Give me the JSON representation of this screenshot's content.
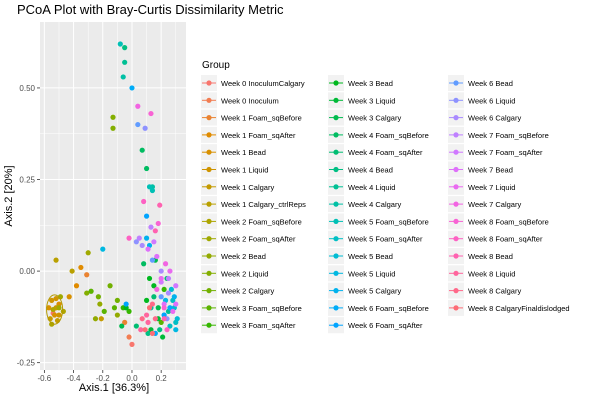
{
  "chart_data": {
    "type": "scatter",
    "title": "PCoA Plot with Bray-Curtis Dissimilarity Metric",
    "xlabel": "Axis.1   [36.3%]",
    "ylabel": "Axis.2   [20%]",
    "xlim": [
      -0.63,
      0.37
    ],
    "ylim": [
      -0.27,
      0.68
    ],
    "x_ticks": [
      -0.6,
      -0.4,
      -0.2,
      0.0,
      0.2
    ],
    "x_tick_labels": [
      "-0.6",
      "-0.4",
      "-0.2",
      "0.0",
      "0.2"
    ],
    "y_ticks": [
      -0.25,
      0.0,
      0.25,
      0.5
    ],
    "y_tick_labels": [
      "-0.25",
      "0.00",
      "0.25",
      "0.50"
    ],
    "grid": true,
    "legend_title": "Group",
    "legend_position": "right",
    "ellipse": {
      "cx": -0.53,
      "cy": -0.105,
      "rx": 0.055,
      "ry": 0.04,
      "color": "#b39a00"
    },
    "series": [
      {
        "name": "Week 0 InoculumCalgary",
        "color": "#f8766d",
        "points": [
          [
            0.0,
            -0.2
          ],
          [
            -0.54,
            -0.115
          ]
        ]
      },
      {
        "name": "Week 0 Inoculum",
        "color": "#f27d52",
        "points": [
          [
            -0.02,
            -0.18
          ]
        ]
      },
      {
        "name": "Week 1 Foam_sqBefore",
        "color": "#ea8331",
        "points": [
          [
            -0.31,
            -0.01
          ],
          [
            -0.05,
            -0.14
          ]
        ]
      },
      {
        "name": "Week 1 Foam_sqAfter",
        "color": "#e08b00",
        "points": [
          [
            -0.35,
            0.01
          ],
          [
            -0.38,
            -0.04
          ]
        ]
      },
      {
        "name": "Week 1 Bead",
        "color": "#d89000",
        "points": [
          [
            -0.5,
            -0.09
          ],
          [
            -0.53,
            -0.12
          ],
          [
            -0.57,
            -0.1
          ],
          [
            -0.43,
            -0.07
          ]
        ]
      },
      {
        "name": "Week 1 Liquid",
        "color": "#cf9400",
        "points": [
          [
            -0.52,
            -0.075
          ],
          [
            -0.55,
            -0.08
          ],
          [
            -0.5,
            -0.12
          ]
        ]
      },
      {
        "name": "Week 1 Calgary",
        "color": "#c49a00",
        "points": [
          [
            -0.51,
            -0.135
          ],
          [
            -0.56,
            -0.13
          ],
          [
            -0.52,
            -0.1
          ],
          [
            -0.21,
            -0.13
          ]
        ]
      },
      {
        "name": "Week 1 Calgary_ctrlReps",
        "color": "#b9a000",
        "points": [
          [
            -0.52,
            0.03
          ],
          [
            -0.41,
            0.0
          ]
        ]
      },
      {
        "name": "Week 2 Foam_sqBefore",
        "color": "#ada500",
        "points": [
          [
            -0.54,
            -0.105
          ],
          [
            -0.55,
            -0.145
          ],
          [
            -0.47,
            -0.11
          ]
        ]
      },
      {
        "name": "Week 2 Foam_sqAfter",
        "color": "#a0a900",
        "points": [
          [
            -0.3,
            0.05
          ],
          [
            -0.5,
            -0.1
          ],
          [
            -0.49,
            -0.07
          ]
        ]
      },
      {
        "name": "Week 2 Bead",
        "color": "#93aa00",
        "points": [
          [
            -0.25,
            -0.13
          ],
          [
            -0.22,
            -0.09
          ],
          [
            -0.1,
            -0.12
          ]
        ]
      },
      {
        "name": "Week 2 Liquid",
        "color": "#83ae00",
        "points": [
          [
            -0.31,
            -0.06
          ],
          [
            -0.13,
            0.42
          ],
          [
            -0.13,
            0.39
          ]
        ]
      },
      {
        "name": "Week 2 Calgary",
        "color": "#72b000",
        "points": [
          [
            -0.15,
            -0.04
          ],
          [
            -0.1,
            -0.08
          ],
          [
            -0.23,
            -0.07
          ]
        ]
      },
      {
        "name": "Week 3 Foam_sqBefore",
        "color": "#5bb300",
        "points": [
          [
            -0.28,
            -0.055
          ],
          [
            -0.19,
            -0.11
          ],
          [
            -0.12,
            -0.1
          ],
          [
            0.2,
            -0.14
          ]
        ]
      },
      {
        "name": "Week 3 Foam_sqAfter",
        "color": "#35b600",
        "points": [
          [
            -0.06,
            -0.1
          ],
          [
            -0.02,
            -0.11
          ],
          [
            0.22,
            -0.05
          ]
        ]
      },
      {
        "name": "Week 3 Bead",
        "color": "#00b81f",
        "points": [
          [
            0.12,
            -0.02
          ],
          [
            0.1,
            -0.08
          ],
          [
            -0.04,
            -0.1
          ],
          [
            0.15,
            -0.04
          ]
        ]
      },
      {
        "name": "Week 3 Liquid",
        "color": "#00ba38",
        "points": [
          [
            0.13,
            -0.16
          ],
          [
            0.18,
            -0.13
          ],
          [
            0.21,
            -0.18
          ]
        ]
      },
      {
        "name": "Week 3 Calgary",
        "color": "#00bb4e",
        "points": [
          [
            0.16,
            0.03
          ],
          [
            -0.07,
            -0.15
          ],
          [
            0.18,
            -0.1
          ]
        ]
      },
      {
        "name": "Week 4 Foam_sqBefore",
        "color": "#00bc61",
        "points": [
          [
            0.07,
            0.33
          ],
          [
            0.1,
            0.28
          ],
          [
            0.08,
            0.02
          ]
        ]
      },
      {
        "name": "Week 4 Foam_sqAfter",
        "color": "#00bd72",
        "points": [
          [
            0.15,
            -0.07
          ],
          [
            0.24,
            -0.02
          ],
          [
            0.03,
            -0.15
          ]
        ]
      },
      {
        "name": "Week 4 Bead",
        "color": "#00bf83",
        "points": [
          [
            -0.05,
            0.61
          ],
          [
            0.11,
            -0.17
          ],
          [
            0.19,
            -0.16
          ]
        ]
      },
      {
        "name": "Week 4 Liquid",
        "color": "#00c094",
        "points": [
          [
            -0.05,
            0.57
          ],
          [
            0.25,
            -0.11
          ],
          [
            0.22,
            -0.12
          ]
        ]
      },
      {
        "name": "Week 4 Calgary",
        "color": "#00c0a5",
        "points": [
          [
            -0.06,
            0.53
          ],
          [
            0.14,
            0.23
          ],
          [
            0.13,
            -0.1
          ]
        ]
      },
      {
        "name": "Week 5 Foam_sqBefore",
        "color": "#00c0b5",
        "points": [
          [
            -0.08,
            0.62
          ],
          [
            0.14,
            0.22
          ],
          [
            0.12,
            0.23
          ]
        ]
      },
      {
        "name": "Week 5 Foam_sqAfter",
        "color": "#00bfc4",
        "points": [
          [
            0.28,
            -0.08
          ],
          [
            0.26,
            -0.15
          ],
          [
            0.3,
            -0.14
          ]
        ]
      },
      {
        "name": "Week 5 Bead",
        "color": "#00bcd3",
        "points": [
          [
            0.31,
            -0.13
          ],
          [
            0.29,
            -0.1
          ],
          [
            0.27,
            -0.05
          ]
        ]
      },
      {
        "name": "Week 5 Liquid",
        "color": "#00b8e1",
        "points": [
          [
            -0.2,
            0.06
          ],
          [
            0.23,
            -0.08
          ],
          [
            0.3,
            -0.16
          ]
        ]
      },
      {
        "name": "Week 5 Calgary",
        "color": "#00b2ed",
        "points": [
          [
            0.12,
            0.07
          ],
          [
            0.1,
            0.09
          ],
          [
            0.29,
            -0.07
          ]
        ]
      },
      {
        "name": "Week 6 Foam_sqBefore",
        "color": "#00acf8",
        "points": [
          [
            0.0,
            0.5
          ],
          [
            0.26,
            -0.1
          ],
          [
            0.16,
            -0.17
          ]
        ]
      },
      {
        "name": "Week 6 Foam_sqAfter",
        "color": "#00a4ff",
        "points": [
          [
            0.1,
            0.15
          ],
          [
            0.22,
            -0.12
          ],
          [
            -0.04,
            -0.09
          ]
        ]
      },
      {
        "name": "Week 6 Bead",
        "color": "#619cff",
        "points": [
          [
            0.04,
            0.4
          ],
          [
            0.14,
            0.03
          ],
          [
            0.2,
            -0.07
          ]
        ]
      },
      {
        "name": "Week 6 Liquid",
        "color": "#8e92ff",
        "points": [
          [
            0.09,
            0.39
          ],
          [
            0.03,
            0.08
          ],
          [
            0.24,
            -0.13
          ]
        ]
      },
      {
        "name": "Week 6 Calgary",
        "color": "#a98aff",
        "points": [
          [
            0.07,
            0.07
          ],
          [
            0.2,
            0.0
          ],
          [
            0.25,
            -0.06
          ]
        ]
      },
      {
        "name": "Week 7 Foam_sqBefore",
        "color": "#bf80ff",
        "points": [
          [
            0.05,
            0.09
          ],
          [
            0.13,
            0.12
          ],
          [
            0.25,
            -0.02
          ]
        ]
      },
      {
        "name": "Week 7 Foam_sqAfter",
        "color": "#d078ff",
        "points": [
          [
            0.15,
            0.08
          ],
          [
            0.2,
            -0.03
          ],
          [
            0.3,
            -0.04
          ]
        ]
      },
      {
        "name": "Week 7 Bead",
        "color": "#de70fa",
        "points": [
          [
            0.11,
            0.06
          ],
          [
            0.17,
            0.04
          ],
          [
            0.22,
            -0.09
          ],
          [
            0.3,
            -0.09
          ]
        ]
      },
      {
        "name": "Week 7 Liquid",
        "color": "#e96af0",
        "points": [
          [
            0.2,
            -0.02
          ],
          [
            0.26,
            0.0
          ],
          [
            0.28,
            -0.11
          ]
        ]
      },
      {
        "name": "Week 7 Calgary",
        "color": "#f264e2",
        "points": [
          [
            0.04,
            0.45
          ],
          [
            0.17,
            -0.05
          ],
          [
            0.23,
            0.02
          ]
        ]
      },
      {
        "name": "Week 8 Foam_sqBefore",
        "color": "#f863d4",
        "points": [
          [
            0.13,
            0.43
          ],
          [
            0.18,
            0.13
          ],
          [
            0.22,
            -0.1
          ]
        ]
      },
      {
        "name": "Week 8 Foam_sqAfter",
        "color": "#fd61c3",
        "points": [
          [
            -0.02,
            0.09
          ],
          [
            0.08,
            0.19
          ],
          [
            0.24,
            -0.16
          ]
        ]
      },
      {
        "name": "Week 8 Bead",
        "color": "#ff62b0",
        "points": [
          [
            0.19,
            0.18
          ],
          [
            0.16,
            0.11
          ],
          [
            0.22,
            -0.13
          ]
        ]
      },
      {
        "name": "Week 8 Liquid",
        "color": "#ff659d",
        "points": [
          [
            0.11,
            -0.14
          ],
          [
            0.06,
            -0.16
          ],
          [
            0.1,
            -0.12
          ]
        ]
      },
      {
        "name": "Week 8 Calgary",
        "color": "#ff6889",
        "points": [
          [
            0.14,
            -0.09
          ],
          [
            0.07,
            -0.13
          ],
          [
            0.16,
            -0.13
          ]
        ]
      },
      {
        "name": "Week 8 CalgaryFinaldislodged",
        "color": "#fd6c76",
        "points": [
          [
            0.09,
            -0.16
          ],
          [
            0.12,
            -0.1
          ],
          [
            0.14,
            -0.17
          ]
        ]
      }
    ]
  }
}
